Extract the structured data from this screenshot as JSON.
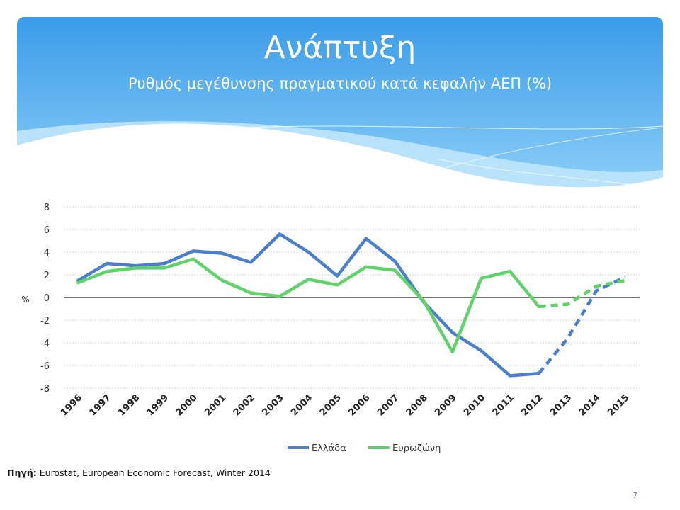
{
  "slide": {
    "title": "Ανάπτυξη",
    "subtitle": "Ρυθμός μεγέθυνσης πραγματικού κατά κεφαλήν ΑΕΠ (%)",
    "source_label": "Πηγή:",
    "source_text": " Eurostat, European Economic Forecast, Winter 2014",
    "page_number": "7"
  },
  "colors": {
    "banner_top": "#3a9be8",
    "banner_bottom": "#8fd0f8",
    "greece": "#4a7fcc",
    "eurozone": "#5fd26a"
  },
  "chart_data": {
    "type": "line",
    "title": "",
    "xlabel": "",
    "ylabel": "%",
    "categories": [
      "1996",
      "1997",
      "1998",
      "1999",
      "2000",
      "2001",
      "2002",
      "2003",
      "2004",
      "2005",
      "2006",
      "2007",
      "2008",
      "2009",
      "2010",
      "2011",
      "2012",
      "2013",
      "2014",
      "2015"
    ],
    "ylim": [
      -8,
      8
    ],
    "yticks": [
      "8",
      "6",
      "4",
      "2",
      "0",
      "-2",
      "-4",
      "-6",
      "-8"
    ],
    "grid": true,
    "legend": "bottom",
    "forecast_from": "2012",
    "series": [
      {
        "name": "Ελλάδα",
        "color": "#4a7fcc",
        "values": [
          1.5,
          3.0,
          2.8,
          3.0,
          4.1,
          3.9,
          3.1,
          5.6,
          4.0,
          1.9,
          5.2,
          3.2,
          -0.4,
          -3.1,
          -4.7,
          -6.9,
          -6.7,
          -3.6,
          0.6,
          1.8
        ]
      },
      {
        "name": "Ευρωζώνη",
        "color": "#5fd26a",
        "values": [
          1.3,
          2.3,
          2.6,
          2.6,
          3.4,
          1.5,
          0.4,
          0.1,
          1.6,
          1.1,
          2.7,
          2.4,
          -0.3,
          -4.8,
          1.7,
          2.3,
          -0.8,
          -0.6,
          1.0,
          1.5
        ]
      }
    ]
  }
}
